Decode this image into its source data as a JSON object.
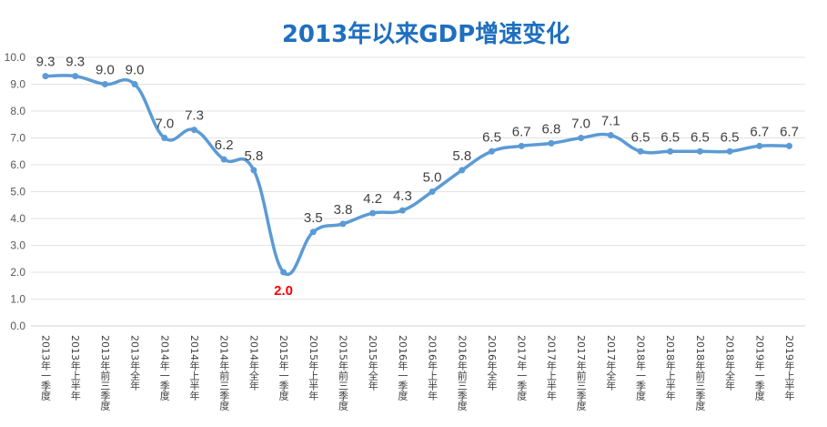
{
  "chart_data": {
    "type": "line",
    "title": "2013年以来GDP增速变化",
    "xlabel": "",
    "ylabel": "",
    "ylim": [
      0,
      10
    ],
    "yticks": [
      "0.0",
      "1.0",
      "2.0",
      "3.0",
      "4.0",
      "5.0",
      "6.0",
      "7.0",
      "8.0",
      "9.0",
      "10.0"
    ],
    "grid": true,
    "smooth": true,
    "line_color": "#5b9bd5",
    "highlight_color": "#ff0000",
    "highlight_index": 8,
    "categories": [
      "2013年一季度",
      "2013年上半年",
      "2013年前三季度",
      "2013年全年",
      "2014年一季度",
      "2014年上半年",
      "2014年前三季度",
      "2014年全年",
      "2015年一季度",
      "2015年上半年",
      "2015年前三季度",
      "2015年全年",
      "2016年一季度",
      "2016年上半年",
      "2016年前三季度",
      "2016年全年",
      "2017年一季度",
      "2017年上半年",
      "2017年前三季度",
      "2017年全年",
      "2018年一季度",
      "2018年上半年",
      "2018年前三季度",
      "2018年全年",
      "2019年一季度",
      "2019年上半年"
    ],
    "values": [
      9.3,
      9.3,
      9.0,
      9.0,
      7.0,
      7.3,
      6.2,
      5.8,
      2.0,
      3.5,
      3.8,
      4.2,
      4.3,
      5.0,
      5.8,
      6.5,
      6.7,
      6.8,
      7.0,
      7.1,
      6.5,
      6.5,
      6.5,
      6.5,
      6.7,
      6.7
    ],
    "data_labels": [
      "9.3",
      "9.3",
      "9.0",
      "9.0",
      "7.0",
      "7.3",
      "6.2",
      "5.8",
      "2.0",
      "3.5",
      "3.8",
      "4.2",
      "4.3",
      "5.0",
      "5.8",
      "6.5",
      "6.7",
      "6.8",
      "7.0",
      "7.1",
      "6.5",
      "6.5",
      "6.5",
      "6.5",
      "6.7",
      "6.7"
    ]
  }
}
